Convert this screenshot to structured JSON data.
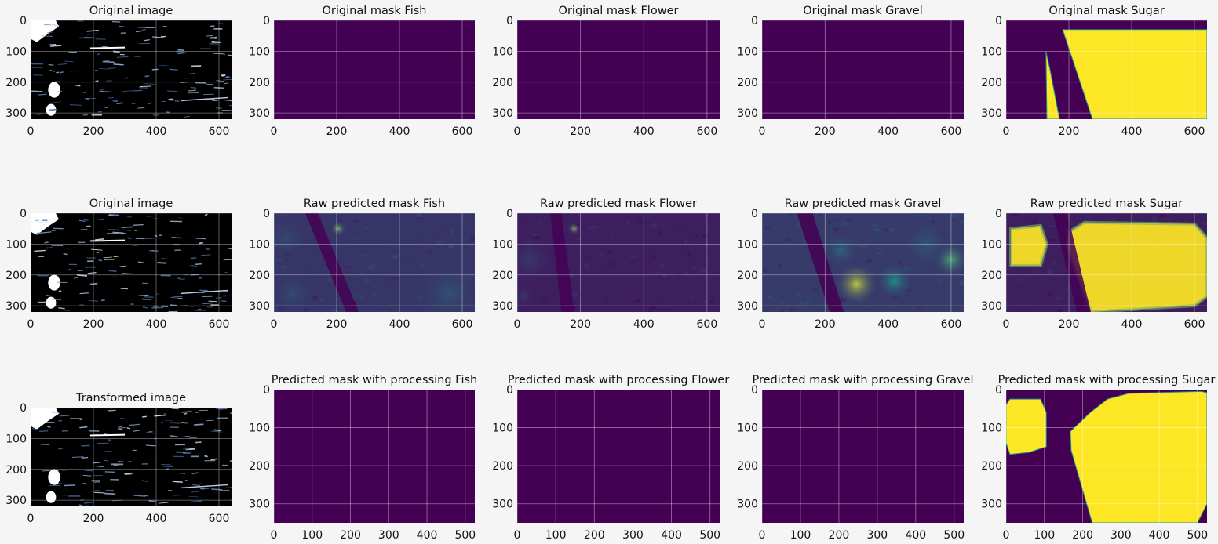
{
  "figure": {
    "background": "#f5f5f5",
    "colormap": {
      "name": "viridis",
      "low": "#440154",
      "mid": "#21918c",
      "high": "#fde725"
    },
    "image_colormap": {
      "low": "#000000",
      "mid": "#4a7ac0",
      "high": "#ffffff"
    }
  },
  "chart_data": [
    {
      "type": "heatmap",
      "title": "Original image",
      "content": "satellite",
      "xlim": [
        0,
        640
      ],
      "ylim": [
        320,
        0
      ],
      "xticks": [
        "0",
        "200",
        "400",
        "600"
      ],
      "yticks": [
        "0",
        "100",
        "200",
        "300"
      ],
      "grid": true
    },
    {
      "type": "heatmap",
      "title": "Original mask Fish",
      "content": "empty",
      "xlim": [
        0,
        640
      ],
      "ylim": [
        320,
        0
      ],
      "xticks": [
        "0",
        "200",
        "400",
        "600"
      ],
      "yticks": [
        "0",
        "100",
        "200",
        "300"
      ],
      "grid": true
    },
    {
      "type": "heatmap",
      "title": "Original mask Flower",
      "content": "empty",
      "xlim": [
        0,
        640
      ],
      "ylim": [
        320,
        0
      ],
      "xticks": [
        "0",
        "200",
        "400",
        "600"
      ],
      "yticks": [
        "0",
        "100",
        "200",
        "300"
      ],
      "grid": true
    },
    {
      "type": "heatmap",
      "title": "Original mask Gravel",
      "content": "empty",
      "xlim": [
        0,
        640
      ],
      "ylim": [
        320,
        0
      ],
      "xticks": [
        "0",
        "200",
        "400",
        "600"
      ],
      "yticks": [
        "0",
        "100",
        "200",
        "300"
      ],
      "grid": true
    },
    {
      "type": "heatmap",
      "title": "Original mask Sugar",
      "content": "mask",
      "xlim": [
        0,
        640
      ],
      "ylim": [
        320,
        0
      ],
      "xticks": [
        "0",
        "200",
        "400",
        "600"
      ],
      "yticks": [
        "0",
        "100",
        "200",
        "300"
      ],
      "grid": true,
      "regions": [
        [
          [
            230,
            30
          ],
          [
            640,
            30
          ],
          [
            640,
            320
          ],
          [
            275,
            320
          ],
          [
            180,
            30
          ]
        ],
        [
          [
            127,
            100
          ],
          [
            140,
            160
          ],
          [
            170,
            320
          ],
          [
            130,
            320
          ]
        ]
      ]
    },
    {
      "type": "heatmap",
      "title": "Original image",
      "content": "satellite",
      "xlim": [
        0,
        640
      ],
      "ylim": [
        320,
        0
      ],
      "xticks": [
        "0",
        "200",
        "400",
        "600"
      ],
      "yticks": [
        "0",
        "100",
        "200",
        "300"
      ],
      "grid": true
    },
    {
      "type": "heatmap",
      "title": "Raw predicted mask Fish",
      "content": "raw",
      "xlim": [
        0,
        640
      ],
      "ylim": [
        320,
        0
      ],
      "xticks": [
        "0",
        "200",
        "400",
        "600"
      ],
      "yticks": [
        "0",
        "100",
        "200",
        "300"
      ],
      "grid": true,
      "level": 0.18,
      "hotspots": [
        {
          "x": 205,
          "y": 50,
          "r": 25,
          "v": 0.7
        },
        {
          "x": 40,
          "y": 80,
          "r": 80,
          "v": 0.25
        },
        {
          "x": 560,
          "y": 260,
          "r": 110,
          "v": 0.28
        },
        {
          "x": 60,
          "y": 260,
          "r": 80,
          "v": 0.25
        }
      ],
      "bands": [
        [
          [
            100,
            0
          ],
          [
            140,
            0
          ],
          [
            270,
            320
          ],
          [
            230,
            320
          ]
        ]
      ]
    },
    {
      "type": "heatmap",
      "title": "Raw predicted mask Flower",
      "content": "raw",
      "xlim": [
        0,
        640
      ],
      "ylim": [
        320,
        0
      ],
      "xticks": [
        "0",
        "200",
        "400",
        "600"
      ],
      "yticks": [
        "0",
        "100",
        "200",
        "300"
      ],
      "grid": true,
      "level": 0.1,
      "hotspots": [
        {
          "x": 180,
          "y": 50,
          "r": 22,
          "v": 0.7
        },
        {
          "x": 40,
          "y": 150,
          "r": 90,
          "v": 0.2
        },
        {
          "x": 20,
          "y": 270,
          "r": 40,
          "v": 0.2
        }
      ],
      "bands": [
        [
          [
            105,
            0
          ],
          [
            140,
            0
          ],
          [
            180,
            320
          ],
          [
            140,
            320
          ]
        ]
      ]
    },
    {
      "type": "heatmap",
      "title": "Raw predicted mask Gravel",
      "content": "raw",
      "xlim": [
        0,
        640
      ],
      "ylim": [
        320,
        0
      ],
      "xticks": [
        "0",
        "200",
        "400",
        "600"
      ],
      "yticks": [
        "0",
        "100",
        "200",
        "300"
      ],
      "grid": true,
      "level": 0.2,
      "hotspots": [
        {
          "x": 300,
          "y": 230,
          "r": 70,
          "v": 0.85
        },
        {
          "x": 420,
          "y": 220,
          "r": 60,
          "v": 0.5
        },
        {
          "x": 600,
          "y": 150,
          "r": 60,
          "v": 0.6
        },
        {
          "x": 250,
          "y": 120,
          "r": 60,
          "v": 0.35
        },
        {
          "x": 520,
          "y": 100,
          "r": 80,
          "v": 0.3
        }
      ],
      "bands": [
        [
          [
            110,
            0
          ],
          [
            160,
            0
          ],
          [
            260,
            320
          ],
          [
            215,
            320
          ]
        ]
      ]
    },
    {
      "type": "heatmap",
      "title": "Raw predicted mask Sugar",
      "content": "raw",
      "xlim": [
        0,
        640
      ],
      "ylim": [
        320,
        0
      ],
      "xticks": [
        "0",
        "200",
        "400",
        "600"
      ],
      "yticks": [
        "0",
        "100",
        "200",
        "300"
      ],
      "grid": true,
      "level": 0.1,
      "regions": [
        [
          [
            250,
            30
          ],
          [
            600,
            35
          ],
          [
            640,
            80
          ],
          [
            640,
            270
          ],
          [
            600,
            300
          ],
          [
            270,
            320
          ],
          [
            195,
            110
          ],
          [
            200,
            60
          ]
        ],
        [
          [
            15,
            50
          ],
          [
            110,
            40
          ],
          [
            130,
            100
          ],
          [
            110,
            170
          ],
          [
            15,
            170
          ]
        ]
      ],
      "bands": [
        [
          [
            150,
            0
          ],
          [
            195,
            0
          ],
          [
            270,
            320
          ],
          [
            225,
            320
          ]
        ]
      ]
    },
    {
      "type": "heatmap",
      "title": "Transformed image",
      "content": "satellite",
      "xlim": [
        0,
        640
      ],
      "ylim": [
        320,
        0
      ],
      "xticks": [
        "0",
        "200",
        "400",
        "600"
      ],
      "yticks": [
        "0",
        "100",
        "200",
        "300"
      ],
      "grid": true
    },
    {
      "type": "heatmap",
      "title": "Predicted mask with processing Fish",
      "content": "empty",
      "xlim": [
        0,
        525
      ],
      "ylim": [
        350,
        0
      ],
      "xticks": [
        "0",
        "100",
        "200",
        "300",
        "400",
        "500"
      ],
      "yticks": [
        "0",
        "100",
        "200",
        "300"
      ],
      "grid": true
    },
    {
      "type": "heatmap",
      "title": "Predicted mask with processing Flower",
      "content": "empty",
      "xlim": [
        0,
        525
      ],
      "ylim": [
        350,
        0
      ],
      "xticks": [
        "0",
        "100",
        "200",
        "300",
        "400",
        "500"
      ],
      "yticks": [
        "0",
        "100",
        "200",
        "300"
      ],
      "grid": true
    },
    {
      "type": "heatmap",
      "title": "Predicted mask with processing Gravel",
      "content": "empty",
      "xlim": [
        0,
        525
      ],
      "ylim": [
        350,
        0
      ],
      "xticks": [
        "0",
        "100",
        "200",
        "300",
        "400",
        "500"
      ],
      "yticks": [
        "0",
        "100",
        "200",
        "300"
      ],
      "grid": true
    },
    {
      "type": "heatmap",
      "title": "Predicted mask with processing Sugar",
      "content": "mask",
      "xlim": [
        0,
        525
      ],
      "ylim": [
        350,
        0
      ],
      "xticks": [
        "0",
        "100",
        "200",
        "300",
        "400",
        "500"
      ],
      "yticks": [
        "0",
        "100",
        "200",
        "300"
      ],
      "grid": true,
      "regions": [
        [
          [
            10,
            25
          ],
          [
            90,
            25
          ],
          [
            105,
            60
          ],
          [
            105,
            150
          ],
          [
            60,
            165
          ],
          [
            10,
            170
          ],
          [
            0,
            140
          ],
          [
            0,
            40
          ]
        ],
        [
          [
            220,
            60
          ],
          [
            265,
            25
          ],
          [
            320,
            10
          ],
          [
            510,
            5
          ],
          [
            525,
            8
          ],
          [
            525,
            300
          ],
          [
            500,
            350
          ],
          [
            225,
            350
          ],
          [
            170,
            160
          ],
          [
            168,
            110
          ]
        ]
      ]
    }
  ]
}
